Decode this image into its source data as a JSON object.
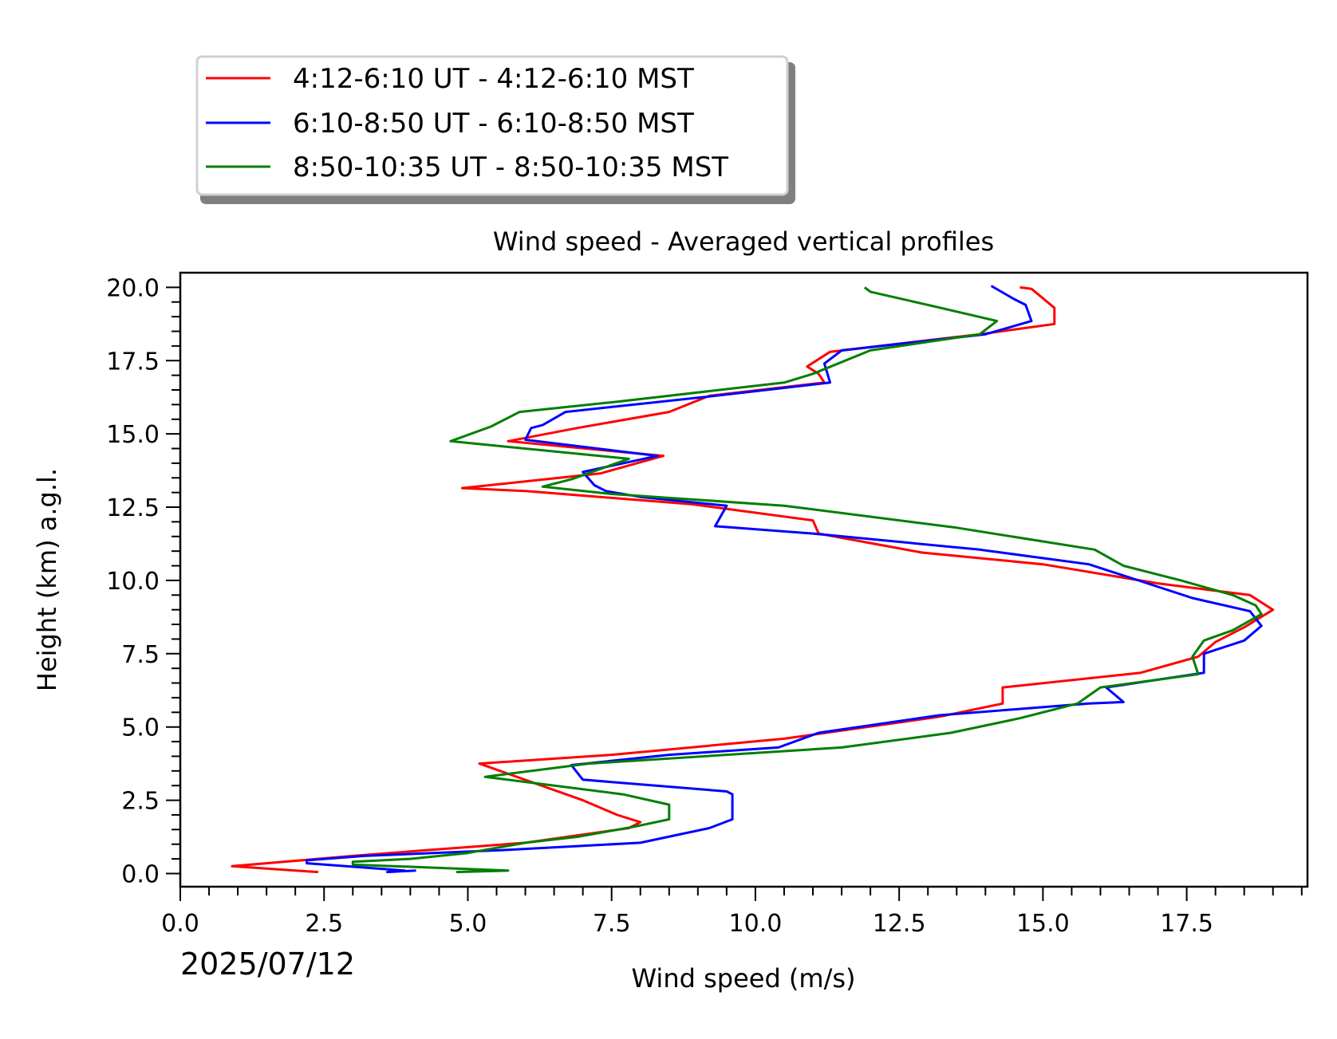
{
  "chart_data": {
    "type": "line",
    "title": "Wind speed - Averaged vertical profiles",
    "xlabel": "Wind speed (m/s)",
    "ylabel": "Height (km) a.g.l.",
    "date_label": "2025/07/12",
    "xlim": [
      0.0,
      19.6
    ],
    "ylim": [
      -0.45,
      20.5
    ],
    "x_ticks": [
      "0.0",
      "2.5",
      "5.0",
      "7.5",
      "10.0",
      "12.5",
      "15.0",
      "17.5"
    ],
    "y_ticks": [
      "0.0",
      "2.5",
      "5.0",
      "7.5",
      "10.0",
      "12.5",
      "15.0",
      "17.5",
      "20.0"
    ],
    "legend_position": "above plot, top-left",
    "grid": false,
    "series": [
      {
        "name": "4:12-6:10 UT - 4:12-6:10 MST",
        "color": "#ff0000",
        "points": [
          [
            2.4,
            0.05
          ],
          [
            2.0,
            0.1
          ],
          [
            0.9,
            0.25
          ],
          [
            1.8,
            0.4
          ],
          [
            3.0,
            0.6
          ],
          [
            4.3,
            0.8
          ],
          [
            6.0,
            1.05
          ],
          [
            7.8,
            1.55
          ],
          [
            8.0,
            1.75
          ],
          [
            7.6,
            2.0
          ],
          [
            7.0,
            2.5
          ],
          [
            5.2,
            3.75
          ],
          [
            7.5,
            4.05
          ],
          [
            10.5,
            4.6
          ],
          [
            13.2,
            5.35
          ],
          [
            14.3,
            5.8
          ],
          [
            14.3,
            6.35
          ],
          [
            16.7,
            6.85
          ],
          [
            17.7,
            7.4
          ],
          [
            18.0,
            7.9
          ],
          [
            18.5,
            8.4
          ],
          [
            19.0,
            9.0
          ],
          [
            18.6,
            9.5
          ],
          [
            17.0,
            9.9
          ],
          [
            15.0,
            10.55
          ],
          [
            12.9,
            10.95
          ],
          [
            11.1,
            11.6
          ],
          [
            11.0,
            12.05
          ],
          [
            8.9,
            12.6
          ],
          [
            6.0,
            13.05
          ],
          [
            4.9,
            13.15
          ],
          [
            7.3,
            13.65
          ],
          [
            8.4,
            14.25
          ],
          [
            5.7,
            14.75
          ],
          [
            6.9,
            15.2
          ],
          [
            8.5,
            15.75
          ],
          [
            9.2,
            16.3
          ],
          [
            11.2,
            16.75
          ],
          [
            11.1,
            17.05
          ],
          [
            10.9,
            17.3
          ],
          [
            11.3,
            17.8
          ],
          [
            13.9,
            18.4
          ],
          [
            15.2,
            18.75
          ],
          [
            15.2,
            19.3
          ],
          [
            14.8,
            19.95
          ],
          [
            14.6,
            20.0
          ]
        ]
      },
      {
        "name": "6:10-8:50 UT - 6:10-8:50 MST",
        "color": "#0000ff",
        "points": [
          [
            4.1,
            0.1
          ],
          [
            3.6,
            0.05
          ],
          [
            3.9,
            0.1
          ],
          [
            2.2,
            0.35
          ],
          [
            2.2,
            0.45
          ],
          [
            3.2,
            0.6
          ],
          [
            5.6,
            0.8
          ],
          [
            8.0,
            1.05
          ],
          [
            9.2,
            1.55
          ],
          [
            9.6,
            1.85
          ],
          [
            9.6,
            2.7
          ],
          [
            9.5,
            2.8
          ],
          [
            7.0,
            3.2
          ],
          [
            6.8,
            3.7
          ],
          [
            8.5,
            4.05
          ],
          [
            10.4,
            4.3
          ],
          [
            11.1,
            4.8
          ],
          [
            13.2,
            5.4
          ],
          [
            15.8,
            5.8
          ],
          [
            16.4,
            5.85
          ],
          [
            16.1,
            6.35
          ],
          [
            17.8,
            6.85
          ],
          [
            17.8,
            7.5
          ],
          [
            18.5,
            7.95
          ],
          [
            18.8,
            8.45
          ],
          [
            18.6,
            8.95
          ],
          [
            17.6,
            9.4
          ],
          [
            15.8,
            10.55
          ],
          [
            13.9,
            11.05
          ],
          [
            11.0,
            11.6
          ],
          [
            9.3,
            11.85
          ],
          [
            9.5,
            12.55
          ],
          [
            8.0,
            12.85
          ],
          [
            7.4,
            13.05
          ],
          [
            7.2,
            13.25
          ],
          [
            7.0,
            13.7
          ],
          [
            8.3,
            14.25
          ],
          [
            6.0,
            14.8
          ],
          [
            6.1,
            15.2
          ],
          [
            6.3,
            15.3
          ],
          [
            6.7,
            15.75
          ],
          [
            9.3,
            16.3
          ],
          [
            11.3,
            16.75
          ],
          [
            11.2,
            17.4
          ],
          [
            11.5,
            17.85
          ],
          [
            14.0,
            18.4
          ],
          [
            14.8,
            18.85
          ],
          [
            14.7,
            19.4
          ],
          [
            14.5,
            19.6
          ],
          [
            14.1,
            20.05
          ]
        ]
      },
      {
        "name": "8:50-10:35 UT - 8:50-10:35 MST",
        "color": "#007f00",
        "points": [
          [
            4.8,
            0.05
          ],
          [
            5.7,
            0.1
          ],
          [
            4.4,
            0.2
          ],
          [
            3.0,
            0.3
          ],
          [
            3.0,
            0.4
          ],
          [
            4.0,
            0.5
          ],
          [
            5.0,
            0.7
          ],
          [
            6.0,
            1.05
          ],
          [
            6.9,
            1.25
          ],
          [
            7.9,
            1.6
          ],
          [
            8.5,
            1.85
          ],
          [
            8.5,
            2.35
          ],
          [
            7.7,
            2.7
          ],
          [
            5.3,
            3.3
          ],
          [
            7.1,
            3.75
          ],
          [
            9.9,
            4.1
          ],
          [
            11.5,
            4.3
          ],
          [
            13.4,
            4.8
          ],
          [
            14.6,
            5.3
          ],
          [
            15.6,
            5.8
          ],
          [
            16.0,
            6.35
          ],
          [
            17.7,
            6.8
          ],
          [
            17.6,
            7.4
          ],
          [
            17.8,
            7.95
          ],
          [
            18.3,
            8.3
          ],
          [
            18.8,
            8.85
          ],
          [
            18.7,
            9.15
          ],
          [
            18.3,
            9.5
          ],
          [
            17.4,
            10.0
          ],
          [
            16.4,
            10.5
          ],
          [
            15.9,
            11.05
          ],
          [
            13.5,
            11.8
          ],
          [
            10.5,
            12.55
          ],
          [
            7.5,
            12.95
          ],
          [
            6.3,
            13.2
          ],
          [
            6.8,
            13.45
          ],
          [
            7.8,
            14.15
          ],
          [
            4.7,
            14.75
          ],
          [
            5.4,
            15.25
          ],
          [
            5.9,
            15.75
          ],
          [
            7.6,
            16.1
          ],
          [
            10.5,
            16.75
          ],
          [
            11.0,
            17.05
          ],
          [
            12.0,
            17.85
          ],
          [
            13.9,
            18.4
          ],
          [
            14.2,
            18.85
          ],
          [
            13.0,
            19.4
          ],
          [
            12.0,
            19.85
          ],
          [
            11.9,
            20.0
          ]
        ]
      }
    ]
  }
}
